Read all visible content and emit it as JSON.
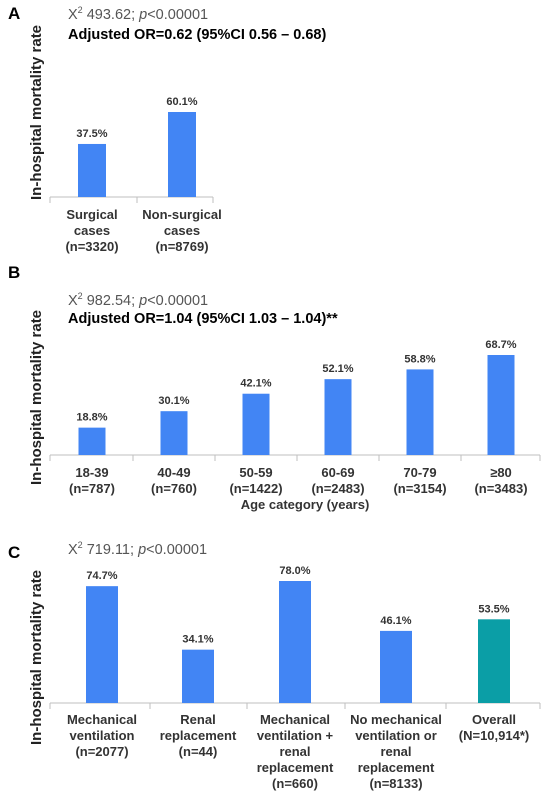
{
  "chart_data": [
    {
      "type": "bar",
      "panel": "A",
      "ylabel": "In-hospital mortality rate",
      "stat_text": "493.62; ",
      "p_text": "<0.00001",
      "or_text": "Adjusted OR=0.62 (95%CI 0.56 – 0.68)",
      "categories": [
        [
          "Surgical",
          "cases",
          "(n=3320)"
        ],
        [
          "Non-surgical",
          "cases",
          "(n=8769)"
        ]
      ],
      "values": [
        37.5,
        60.1
      ],
      "value_labels": [
        "37.5%",
        "60.1%"
      ],
      "colors": [
        "#4285f4",
        "#4285f4"
      ],
      "xlabel": ""
    },
    {
      "type": "bar",
      "panel": "B",
      "ylabel": "In-hospital mortality rate",
      "stat_text": "982.54; ",
      "p_text": "<0.00001",
      "or_text": "Adjusted OR=1.04 (95%CI 1.03 – 1.04)**",
      "categories": [
        [
          "18-39",
          "(n=787)"
        ],
        [
          "40-49",
          "(n=760)"
        ],
        [
          "50-59",
          "(n=1422)"
        ],
        [
          "60-69",
          "(n=2483)"
        ],
        [
          "70-79",
          "(n=3154)"
        ],
        [
          "≥80",
          "(n=3483)"
        ]
      ],
      "values": [
        18.8,
        30.1,
        42.1,
        52.1,
        58.8,
        68.7
      ],
      "value_labels": [
        "18.8%",
        "30.1%",
        "42.1%",
        "52.1%",
        "58.8%",
        "68.7%"
      ],
      "colors": [
        "#4285f4",
        "#4285f4",
        "#4285f4",
        "#4285f4",
        "#4285f4",
        "#4285f4"
      ],
      "xlabel": "Age category (years)"
    },
    {
      "type": "bar",
      "panel": "C",
      "ylabel": "In-hospital mortality rate",
      "stat_text": "719.11; ",
      "p_text": "<0.00001",
      "or_text": "",
      "categories": [
        [
          "Mechanical",
          "ventilation",
          "(n=2077)"
        ],
        [
          "Renal",
          "replacement",
          "(n=44)"
        ],
        [
          "Mechanical",
          "ventilation +",
          "renal",
          "replacement",
          "(n=660)"
        ],
        [
          "No mechanical",
          "ventilation or",
          "renal",
          "replacement",
          "(n=8133)"
        ],
        [
          "Overall",
          "(N=10,914*)"
        ]
      ],
      "values": [
        74.7,
        34.1,
        78.0,
        46.1,
        53.5
      ],
      "value_labels": [
        "74.7%",
        "34.1%",
        "78.0%",
        "46.1%",
        "53.5%"
      ],
      "colors": [
        "#4285f4",
        "#4285f4",
        "#4285f4",
        "#4285f4",
        "#0b9ea6"
      ],
      "xlabel": ""
    }
  ]
}
